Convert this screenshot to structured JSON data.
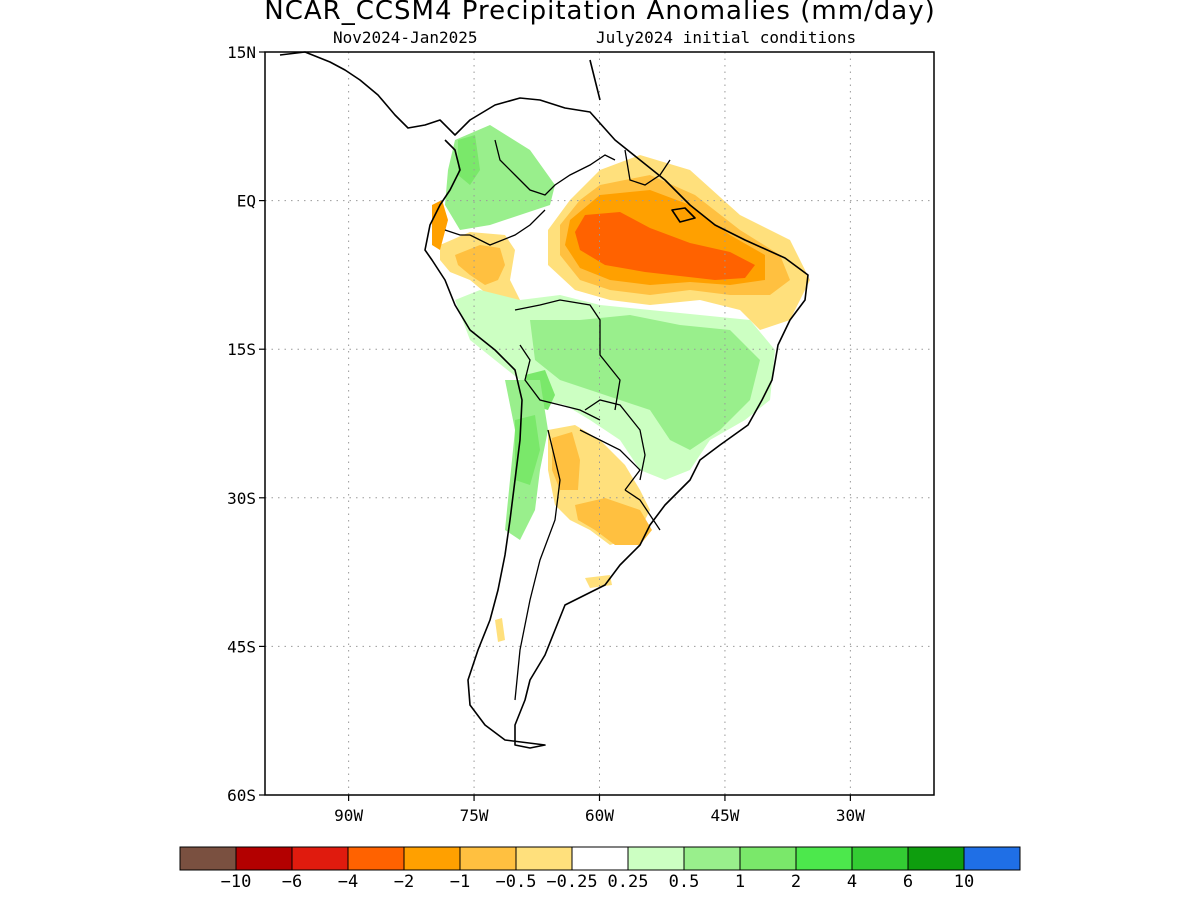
{
  "header": {
    "title": "NCAR_CCSM4 Precipitation Anomalies (mm/day)",
    "period": "Nov2024-Jan2025",
    "init": "July2024 initial conditions"
  },
  "map": {
    "lat_ticks": [
      "15N",
      "EQ",
      "15S",
      "30S",
      "45S",
      "60S"
    ],
    "lon_ticks": [
      "90W",
      "75W",
      "60W",
      "45W",
      "30W"
    ],
    "lat_range": [
      -60,
      15
    ],
    "lon_range": [
      -100,
      -20
    ],
    "grid_lines": true
  },
  "colorbar": {
    "colors": [
      "#7a5040",
      "#b30000",
      "#e01b0e",
      "#ff6200",
      "#ffa000",
      "#ffc040",
      "#ffe07c",
      "#ffffff",
      "#ccffc2",
      "#99ef8c",
      "#7ae86a",
      "#4ce84c",
      "#33cc33",
      "#0e9e0e",
      "#1f6fe6"
    ],
    "labels": [
      "-10",
      "-6",
      "-4",
      "-2",
      "-1",
      "-0.5",
      "-0.25",
      "0.25",
      "0.5",
      "1",
      "2",
      "4",
      "6",
      "10"
    ]
  }
}
